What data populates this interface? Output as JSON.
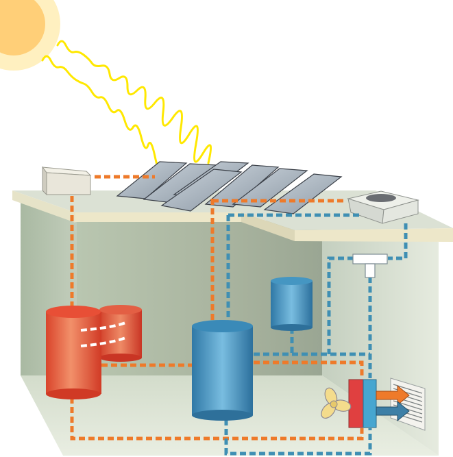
{
  "colors": {
    "hot_pipe": "#ee7a2a",
    "cold_pipe": "#3f8fb3",
    "pipe_gap": "#ffffff",
    "wall_back": "#a8b8a0",
    "wall_left": "#bccbb8",
    "floor": "#dfe6d6",
    "roof": "#dde3d6",
    "sun_outer": "#ffe8a8",
    "sun_inner": "#ffd27a",
    "rays": "#ffea00",
    "panel": "#aeb9c4",
    "hot_tank": "#e8553a",
    "cold_tank": "#3c8fc0",
    "fan": "#f4dc8c",
    "heater_hot": "#e04040",
    "heater_cold": "#47a6d0",
    "arrow_hot": "#ef7a2a",
    "arrow_cold": "#3d7fa6"
  },
  "icons": {
    "sun": "sun-icon",
    "fan": "fan-icon",
    "vent": "vent-grille-icon",
    "arrow": "arrow-right-icon"
  }
}
